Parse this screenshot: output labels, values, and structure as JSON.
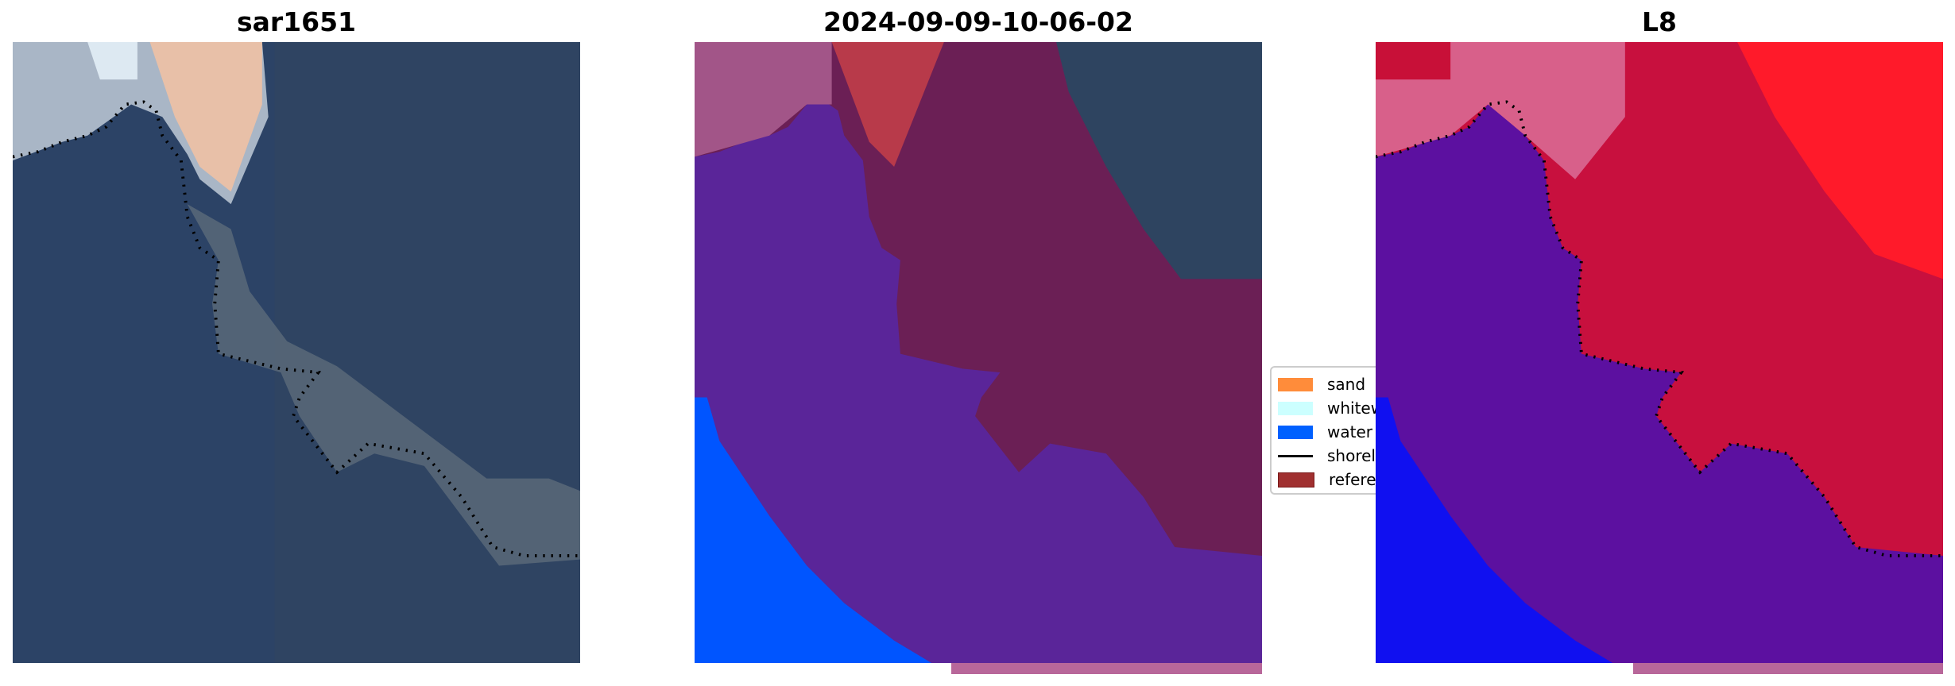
{
  "titles": [
    "sar1651",
    "2024-09-09-10-06-02",
    "L8"
  ],
  "legend": [
    {
      "label": "sand",
      "color": "#ff8c3a",
      "kind": "patch"
    },
    {
      "label": "whitewater",
      "color": "#ccffff",
      "kind": "patch"
    },
    {
      "label": "water",
      "color": "#0060ff",
      "kind": "patch"
    },
    {
      "label": "shoreline",
      "color": "#000000",
      "kind": "line"
    },
    {
      "label": "reference",
      "color": "#a03030",
      "kind": "patch"
    }
  ],
  "chart_data": {
    "type": "image-panels",
    "panels": [
      {
        "title": "sar1651",
        "content": "RGB satellite image with dotted shoreline"
      },
      {
        "title": "2024-09-09-10-06-02",
        "content": "classification overlay with dotted shoreline"
      },
      {
        "title": "L8",
        "content": "classification probability image with dotted shoreline"
      }
    ],
    "axes": "off"
  }
}
